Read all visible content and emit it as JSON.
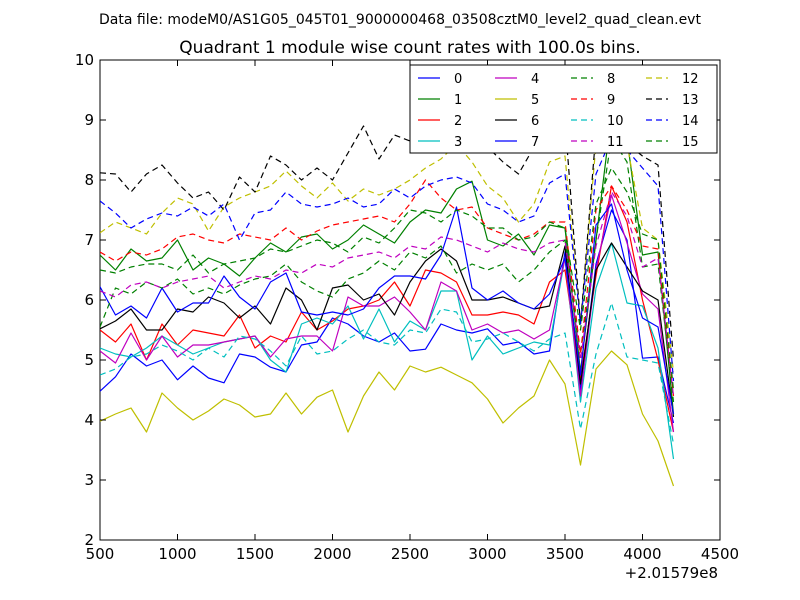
{
  "chart_data": {
    "type": "line",
    "suptitle": "Data file: modeM0/AS1G05_045T01_9000000468_03508cztM0_level2_quad_clean.evt",
    "title": "Quadrant 1 module wise count rates with 100.0s bins.",
    "xlabel": "",
    "ylabel": "",
    "x_offset_label": "+2.01579e8",
    "xlim": [
      500,
      4500
    ],
    "ylim": [
      2,
      10
    ],
    "xticks": [
      500,
      1000,
      1500,
      2000,
      2500,
      3000,
      3500,
      4000,
      4500
    ],
    "yticks": [
      2,
      3,
      4,
      5,
      6,
      7,
      8,
      9,
      10
    ],
    "legend_position": "top-right",
    "x": [
      500,
      600,
      700,
      800,
      900,
      1000,
      1100,
      1200,
      1300,
      1400,
      1500,
      1600,
      1700,
      1800,
      1900,
      2000,
      2100,
      2200,
      2300,
      2400,
      2500,
      2600,
      2700,
      2800,
      2900,
      3000,
      3100,
      3200,
      3300,
      3400,
      3500,
      3600,
      3700,
      3800,
      3900,
      4000,
      4100,
      4200
    ],
    "series": [
      {
        "name": "0",
        "color": "#0000ff",
        "dash": "solid",
        "values": [
          4.48,
          4.72,
          5.1,
          4.9,
          5.0,
          4.67,
          4.9,
          4.7,
          4.62,
          5.1,
          5.05,
          4.88,
          4.8,
          5.25,
          5.3,
          5.7,
          5.6,
          5.4,
          5.3,
          5.45,
          5.15,
          5.18,
          5.6,
          5.5,
          5.45,
          5.52,
          5.25,
          5.3,
          5.1,
          5.15,
          6.8,
          4.5,
          6.6,
          7.5,
          7.0,
          5.03,
          5.05,
          3.95
        ]
      },
      {
        "name": "1",
        "color": "#008000",
        "dash": "solid",
        "values": [
          6.75,
          6.5,
          6.85,
          6.65,
          6.7,
          7.0,
          6.5,
          6.7,
          6.6,
          6.4,
          6.7,
          6.95,
          6.8,
          7.05,
          7.1,
          6.85,
          7.0,
          7.25,
          7.1,
          6.95,
          7.3,
          7.5,
          7.45,
          7.85,
          7.98,
          7.0,
          6.9,
          7.1,
          6.75,
          7.25,
          7.2,
          4.8,
          7.0,
          9.1,
          8.7,
          6.75,
          6.8,
          4.1
        ]
      },
      {
        "name": "2",
        "color": "#ff0000",
        "dash": "solid",
        "values": [
          5.5,
          5.3,
          5.6,
          5.0,
          5.6,
          5.25,
          5.5,
          5.45,
          5.4,
          5.75,
          5.2,
          5.4,
          5.3,
          5.8,
          5.5,
          5.65,
          5.85,
          5.9,
          6.0,
          6.3,
          5.9,
          6.5,
          6.45,
          6.3,
          5.75,
          5.75,
          5.8,
          5.75,
          5.6,
          6.3,
          6.5,
          4.7,
          6.4,
          7.9,
          7.3,
          6.0,
          5.0,
          3.8
        ]
      },
      {
        "name": "3",
        "color": "#00bfbf",
        "dash": "solid",
        "values": [
          5.2,
          5.1,
          5.05,
          5.2,
          5.4,
          5.25,
          5.1,
          5.2,
          5.3,
          5.35,
          5.4,
          5.0,
          4.8,
          5.6,
          5.7,
          5.6,
          5.9,
          5.35,
          5.85,
          5.3,
          5.65,
          5.5,
          6.15,
          6.15,
          5.0,
          5.4,
          5.1,
          5.2,
          5.3,
          5.25,
          6.7,
          4.3,
          6.2,
          6.95,
          5.95,
          5.9,
          5.2,
          3.35
        ]
      },
      {
        "name": "4",
        "color": "#bf00bf",
        "dash": "solid",
        "values": [
          5.15,
          4.95,
          5.45,
          5.0,
          5.4,
          5.05,
          5.25,
          5.25,
          5.3,
          5.35,
          5.4,
          5.05,
          5.35,
          5.4,
          5.4,
          5.15,
          6.05,
          5.9,
          5.9,
          6.05,
          5.8,
          5.5,
          6.3,
          6.15,
          5.5,
          5.6,
          5.45,
          5.5,
          5.35,
          5.5,
          6.7,
          4.4,
          6.5,
          7.75,
          6.95,
          6.1,
          5.85,
          3.8
        ]
      },
      {
        "name": "5",
        "color": "#bfbf00",
        "dash": "solid",
        "values": [
          3.98,
          4.1,
          4.2,
          3.8,
          4.45,
          4.2,
          4.0,
          4.15,
          4.35,
          4.25,
          4.05,
          4.1,
          4.45,
          4.1,
          4.38,
          4.5,
          3.8,
          4.4,
          4.8,
          4.5,
          4.9,
          4.8,
          4.88,
          4.75,
          4.62,
          4.35,
          3.95,
          4.2,
          4.4,
          5.0,
          4.6,
          3.25,
          4.85,
          5.15,
          4.92,
          4.1,
          3.65,
          2.9
        ]
      },
      {
        "name": "6",
        "color": "#000000",
        "dash": "solid",
        "values": [
          5.52,
          5.65,
          5.85,
          5.5,
          5.5,
          5.85,
          5.8,
          6.05,
          5.95,
          5.7,
          5.9,
          5.6,
          6.2,
          6.0,
          5.5,
          6.2,
          6.25,
          6.0,
          6.1,
          5.75,
          6.3,
          6.65,
          6.85,
          6.65,
          6.0,
          6.0,
          6.05,
          5.95,
          5.85,
          5.9,
          6.9,
          4.6,
          6.5,
          6.95,
          6.55,
          6.15,
          6.0,
          4.05
        ]
      },
      {
        "name": "7",
        "color": "#0000ff",
        "dash": "solid",
        "values": [
          6.22,
          5.75,
          5.9,
          5.7,
          6.2,
          5.8,
          5.95,
          5.95,
          6.4,
          6.05,
          5.85,
          6.3,
          6.45,
          5.8,
          5.75,
          5.8,
          5.75,
          5.85,
          6.2,
          6.4,
          6.4,
          6.35,
          6.75,
          7.55,
          6.2,
          6.0,
          6.15,
          5.95,
          5.85,
          6.1,
          6.7,
          4.75,
          7.25,
          7.6,
          6.5,
          5.7,
          5.55,
          4.1
        ]
      },
      {
        "name": "8",
        "color": "#008000",
        "dash": "dashed",
        "values": [
          5.55,
          6.2,
          6.1,
          6.3,
          6.2,
          6.35,
          6.1,
          6.2,
          6.1,
          6.25,
          6.35,
          6.4,
          6.6,
          6.3,
          6.15,
          6.05,
          6.35,
          6.45,
          6.65,
          6.5,
          6.8,
          6.7,
          6.9,
          6.45,
          6.6,
          6.5,
          6.6,
          6.3,
          6.5,
          6.8,
          7.0,
          5.1,
          7.0,
          8.7,
          8.3,
          6.55,
          6.6,
          4.3
        ]
      },
      {
        "name": "9",
        "color": "#ff0000",
        "dash": "dashed",
        "values": [
          6.8,
          6.65,
          6.8,
          6.75,
          6.85,
          7.05,
          7.1,
          7.0,
          6.95,
          7.1,
          7.05,
          7.0,
          7.2,
          7.0,
          7.15,
          7.25,
          7.3,
          7.35,
          7.4,
          7.3,
          7.6,
          8.0,
          7.7,
          7.5,
          7.55,
          7.2,
          7.1,
          7.0,
          7.1,
          7.3,
          7.3,
          5.1,
          7.5,
          7.9,
          7.5,
          6.9,
          6.85,
          4.4
        ]
      },
      {
        "name": "10",
        "color": "#00bfbf",
        "dash": "dashed",
        "values": [
          4.75,
          4.85,
          5.05,
          5.1,
          5.25,
          5.15,
          5.0,
          5.2,
          5.05,
          5.4,
          5.35,
          5.15,
          4.9,
          5.4,
          5.1,
          5.15,
          5.35,
          5.5,
          5.3,
          5.25,
          5.5,
          5.45,
          5.85,
          5.8,
          5.3,
          5.35,
          5.45,
          5.3,
          5.15,
          5.35,
          5.45,
          3.85,
          5.1,
          5.95,
          5.05,
          5.0,
          4.95,
          3.6
        ]
      },
      {
        "name": "11",
        "color": "#bf00bf",
        "dash": "dashed",
        "values": [
          6.15,
          6.05,
          6.25,
          6.3,
          6.2,
          6.3,
          6.35,
          6.4,
          6.2,
          6.3,
          6.4,
          6.35,
          6.5,
          6.45,
          6.6,
          6.55,
          6.7,
          6.75,
          6.8,
          6.7,
          6.9,
          6.85,
          7.05,
          7.0,
          6.9,
          6.8,
          6.95,
          6.85,
          6.8,
          6.95,
          7.0,
          5.0,
          6.9,
          7.8,
          7.4,
          6.55,
          6.7,
          4.4
        ]
      },
      {
        "name": "12",
        "color": "#bfbf00",
        "dash": "dashed",
        "values": [
          7.12,
          7.3,
          7.2,
          7.1,
          7.45,
          7.7,
          7.6,
          7.15,
          7.55,
          7.7,
          7.8,
          7.9,
          8.15,
          7.9,
          7.7,
          7.95,
          7.65,
          7.85,
          7.75,
          7.85,
          8.0,
          8.2,
          8.35,
          8.6,
          8.3,
          7.9,
          7.7,
          7.3,
          7.6,
          8.3,
          8.4,
          5.6,
          8.6,
          9.05,
          8.6,
          7.2,
          7.0,
          4.8
        ]
      },
      {
        "name": "13",
        "color": "#000000",
        "dash": "dashed",
        "values": [
          8.12,
          8.1,
          7.8,
          8.1,
          8.25,
          7.95,
          7.7,
          7.8,
          7.5,
          8.05,
          7.8,
          8.4,
          8.25,
          8.0,
          8.2,
          8.0,
          8.45,
          8.9,
          8.35,
          8.75,
          8.65,
          8.9,
          8.85,
          8.8,
          8.7,
          8.55,
          8.3,
          8.1,
          8.55,
          8.6,
          9.0,
          5.6,
          8.8,
          9.0,
          8.6,
          8.4,
          8.25,
          5.0
        ]
      },
      {
        "name": "14",
        "color": "#0000ff",
        "dash": "dashed",
        "values": [
          7.65,
          7.45,
          7.2,
          7.35,
          7.45,
          7.4,
          7.55,
          7.4,
          7.6,
          7.0,
          7.45,
          7.5,
          7.8,
          7.6,
          7.55,
          7.6,
          7.7,
          7.55,
          7.6,
          7.85,
          7.7,
          7.9,
          8.0,
          8.05,
          7.95,
          7.6,
          7.5,
          7.3,
          7.4,
          7.95,
          8.1,
          5.6,
          8.1,
          8.7,
          8.5,
          8.2,
          7.9,
          4.65
        ]
      },
      {
        "name": "15",
        "color": "#008000",
        "dash": "dashed",
        "values": [
          6.5,
          6.45,
          6.55,
          6.6,
          6.6,
          6.5,
          6.75,
          6.45,
          6.6,
          6.65,
          6.7,
          6.85,
          6.8,
          6.9,
          7.0,
          6.95,
          6.8,
          7.05,
          6.95,
          7.2,
          7.5,
          7.45,
          7.3,
          7.5,
          7.4,
          7.2,
          7.2,
          7.0,
          7.05,
          7.3,
          7.2,
          5.5,
          7.6,
          8.2,
          7.8,
          7.1,
          7.0,
          4.5
        ]
      }
    ]
  }
}
